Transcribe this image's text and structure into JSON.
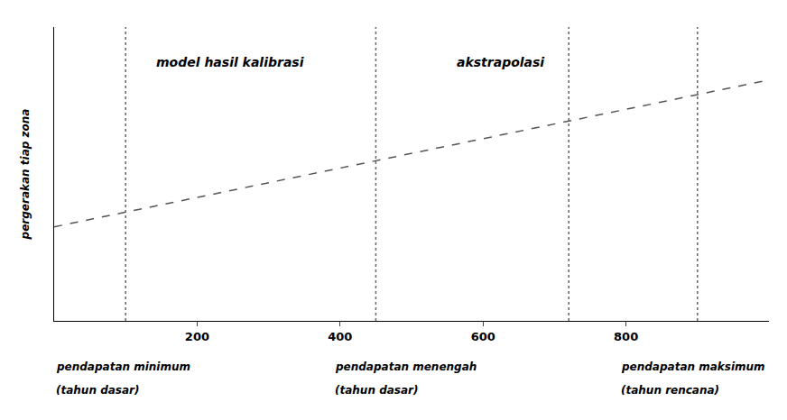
{
  "chart_data": {
    "type": "line",
    "ylabel": "pergerakan tiap zona",
    "series": [
      {
        "type": "line",
        "x": [
          0,
          1000
        ],
        "values": [
          0.32,
          0.82
        ],
        "color": "#555555",
        "line_style": "dashed"
      },
      {
        "type": "vline",
        "x": [
          100,
          450,
          720,
          900
        ],
        "color": "#666666",
        "line_style": "dotted"
      }
    ],
    "xlim": [
      0,
      1000
    ],
    "xticks": [
      200,
      400,
      600,
      800
    ],
    "ylim": [
      0,
      1
    ],
    "yticks": [],
    "tick_labels": "x",
    "grid": false,
    "annotations": [
      "model hasil kalibrasi",
      "akstrapolasi",
      "pendapatan minimum",
      "(tahun dasar)",
      "pendapatan menengah",
      "(tahun dasar)",
      "pendapatan maksimum",
      "(tahun rencana)"
    ]
  }
}
